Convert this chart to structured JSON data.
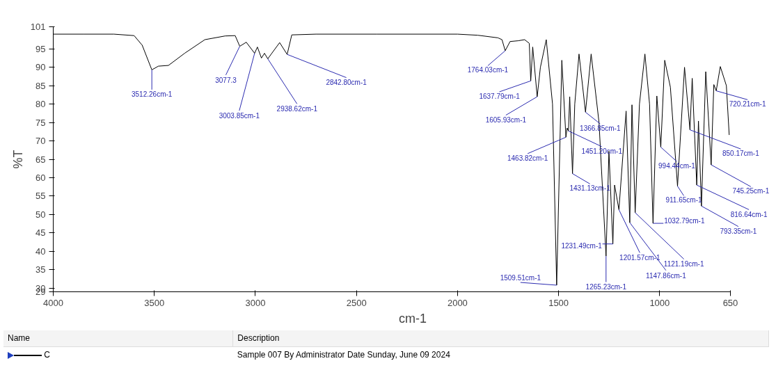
{
  "chart_data": {
    "type": "line",
    "xlabel": "cm-1",
    "ylabel": "%T",
    "xlim": [
      4000,
      650
    ],
    "ylim": [
      29,
      101
    ],
    "xticks": [
      4000,
      3500,
      3000,
      2500,
      2000,
      1500,
      1000,
      650
    ],
    "yticks": [
      29,
      30,
      35,
      40,
      45,
      50,
      55,
      60,
      65,
      70,
      75,
      80,
      85,
      90,
      95,
      101
    ],
    "grid": false,
    "legend": "bottom",
    "marker": "none",
    "line_style": "solid",
    "series": [
      {
        "name": "C",
        "color": "#000000",
        "x": [
          4000,
          3850,
          3700,
          3600,
          3560,
          3512.26,
          3480,
          3430,
          3350,
          3250,
          3150,
          3100,
          3077.3,
          3045,
          3003.85,
          2990,
          2970,
          2955,
          2938.62,
          2920,
          2880,
          2842.8,
          2820,
          2700,
          2400,
          2000,
          1900,
          1800,
          1780,
          1764.03,
          1740,
          1700,
          1668,
          1645,
          1637.79,
          1628,
          1605.93,
          1590,
          1561,
          1530,
          1509.51,
          1484,
          1463.82,
          1458,
          1451.2,
          1445,
          1431.13,
          1420,
          1399,
          1366.85,
          1339,
          1300,
          1265.23,
          1251,
          1231.49,
          1223,
          1201.57,
          1166,
          1147.86,
          1137,
          1121.19,
          1100,
          1073,
          1050,
          1032.79,
          1014,
          994.44,
          975,
          947,
          911.65,
          877,
          850.17,
          839,
          816.64,
          808,
          793.35,
          772,
          745.25,
          732,
          720.21,
          700,
          670,
          656
        ],
        "values": [
          99,
          99,
          99,
          98.6,
          96,
          89.3,
          90.3,
          90.5,
          93.8,
          97.5,
          98.5,
          98.6,
          95.7,
          96.8,
          93.8,
          95.5,
          92.5,
          93.8,
          92.3,
          93.7,
          96.7,
          93.5,
          98.8,
          99,
          99,
          99,
          98.7,
          98,
          97.5,
          94.5,
          97,
          97.2,
          97.5,
          96.5,
          86.3,
          95.5,
          82,
          90,
          97.5,
          80,
          30.8,
          91.9,
          71,
          73.5,
          72.7,
          82,
          61.1,
          80,
          93.6,
          77.8,
          93.6,
          75,
          38.7,
          67.2,
          42,
          58,
          51.3,
          78.1,
          47.8,
          79.8,
          50.5,
          80,
          93.6,
          80,
          47.6,
          82.2,
          68.3,
          91.9,
          84.6,
          57.7,
          90,
          73,
          87,
          58,
          75.4,
          52.3,
          88.8,
          63.5,
          85.3,
          83.6,
          90.2,
          85,
          71.6
        ]
      }
    ],
    "annotations": [
      {
        "text": "3512.26cm-1",
        "x": 3512.26,
        "y": 89.3
      },
      {
        "text": "3077.3",
        "x": 3077.3,
        "y": 95.7
      },
      {
        "text": "3003.85cm-1",
        "x": 3003.85,
        "y": 93.8
      },
      {
        "text": "2938.62cm-1",
        "x": 2938.62,
        "y": 92.3
      },
      {
        "text": "2842.80cm-1",
        "x": 2842.8,
        "y": 93.5
      },
      {
        "text": "1764.03cm-1",
        "x": 1764.03,
        "y": 94.5
      },
      {
        "text": "1637.79cm-1",
        "x": 1637.79,
        "y": 86.3
      },
      {
        "text": "1605.93cm-1",
        "x": 1605.93,
        "y": 82
      },
      {
        "text": "1509.51cm-1",
        "x": 1509.51,
        "y": 30.8
      },
      {
        "text": "1463.82cm-1",
        "x": 1463.82,
        "y": 71
      },
      {
        "text": "1451.20cm-1",
        "x": 1451.2,
        "y": 72.7
      },
      {
        "text": "1431.13cm-1",
        "x": 1431.13,
        "y": 61.1
      },
      {
        "text": "1366.85cm-1",
        "x": 1366.85,
        "y": 77.8
      },
      {
        "text": "1265.23cm-1",
        "x": 1265.23,
        "y": 38.7
      },
      {
        "text": "1231.49cm-1",
        "x": 1231.49,
        "y": 42
      },
      {
        "text": "1201.57cm-1",
        "x": 1201.57,
        "y": 51.3
      },
      {
        "text": "1147.86cm-1",
        "x": 1147.86,
        "y": 47.8
      },
      {
        "text": "1121.19cm-1",
        "x": 1121.19,
        "y": 50.5
      },
      {
        "text": "1032.79cm-1",
        "x": 1032.79,
        "y": 47.6
      },
      {
        "text": "994.44cm-1",
        "x": 994.44,
        "y": 68.3
      },
      {
        "text": "911.65cm-1",
        "x": 911.65,
        "y": 57.7
      },
      {
        "text": "850.17cm-1",
        "x": 850.17,
        "y": 73
      },
      {
        "text": "816.64cm-1",
        "x": 816.64,
        "y": 58
      },
      {
        "text": "793.35cm-1",
        "x": 793.35,
        "y": 52.3
      },
      {
        "text": "745.25cm-1",
        "x": 745.25,
        "y": 63.5
      },
      {
        "text": "720.21cm-1",
        "x": 720.21,
        "y": 83.6
      },
      "Name",
      "Description",
      "Sample 007 By Administrator Date Sunday, June 09 2024"
    ]
  }
}
